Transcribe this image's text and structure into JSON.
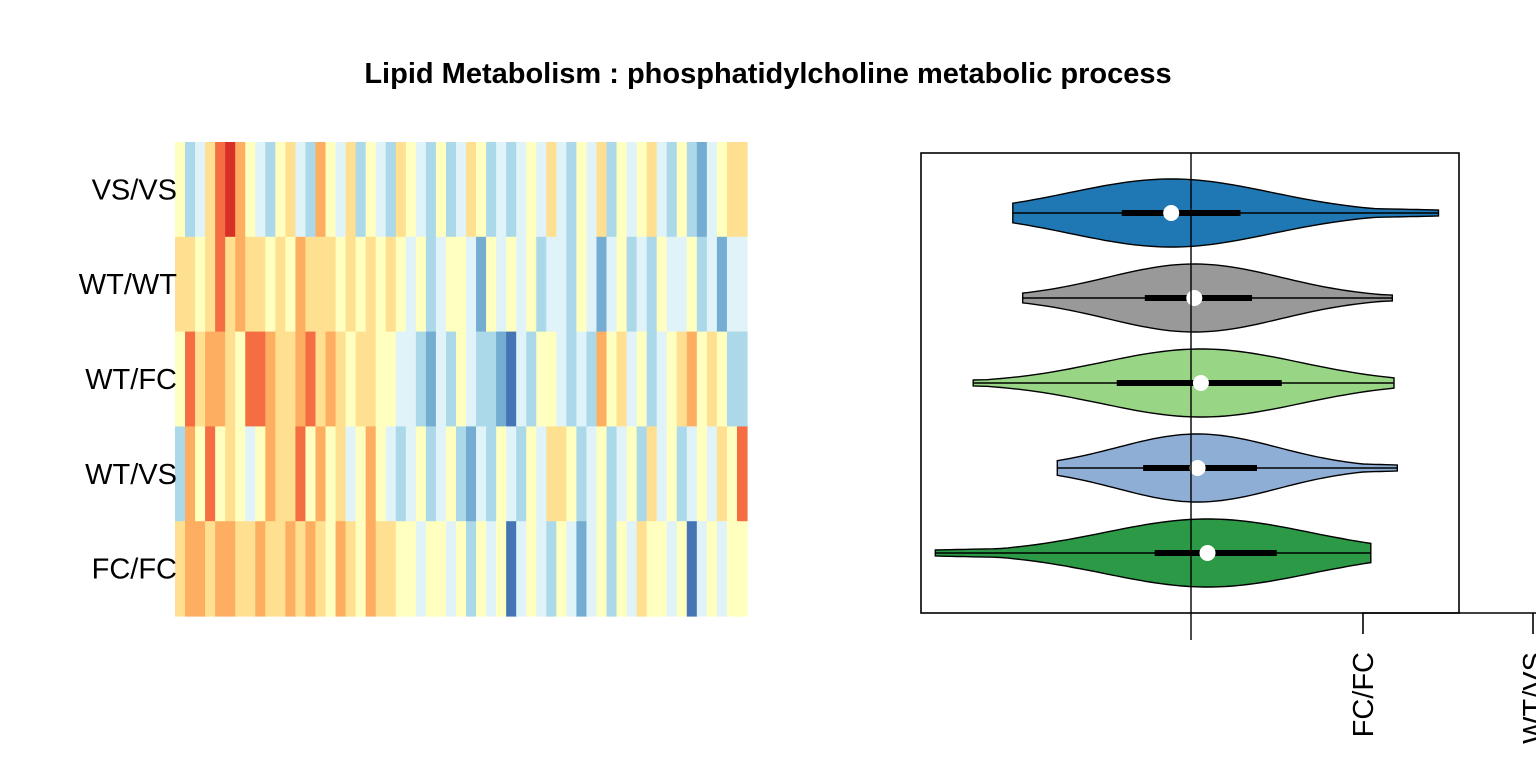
{
  "chart_data": [
    {
      "type": "heatmap",
      "title": "Lipid Metabolism : phosphatidylcholine metabolic process",
      "rows": [
        "VS/VS",
        "WT/WT",
        "WT/FC",
        "WT/VS",
        "FC/FC"
      ],
      "n_columns": 57,
      "palette": [
        "#d73027",
        "#f46d43",
        "#fdae61",
        "#fee090",
        "#ffffbf",
        "#e0f3f8",
        "#abd9e9",
        "#74add1",
        "#4575b4"
      ],
      "values": [
        [
          4,
          6,
          5,
          3,
          1,
          0,
          2,
          4,
          5,
          6,
          4,
          3,
          5,
          6,
          2,
          4,
          5,
          3,
          6,
          4,
          5,
          6,
          3,
          4,
          5,
          6,
          4,
          6,
          5,
          3,
          4,
          6,
          5,
          6,
          5,
          4,
          5,
          3,
          5,
          6,
          4,
          5,
          3,
          6,
          4,
          5,
          4,
          3,
          5,
          6,
          4,
          6,
          7,
          5,
          4,
          3,
          3
        ],
        [
          3,
          3,
          4,
          3,
          1,
          3,
          2,
          3,
          3,
          4,
          3,
          4,
          2,
          3,
          3,
          3,
          4,
          3,
          4,
          3,
          4,
          3,
          4,
          5,
          4,
          6,
          5,
          4,
          4,
          5,
          7,
          4,
          5,
          4,
          5,
          4,
          6,
          5,
          5,
          6,
          4,
          5,
          7,
          5,
          4,
          6,
          5,
          6,
          4,
          5,
          5,
          4,
          6,
          5,
          7,
          5,
          5
        ],
        [
          4,
          1,
          3,
          2,
          2,
          3,
          4,
          1,
          1,
          2,
          3,
          3,
          2,
          1,
          3,
          2,
          3,
          4,
          3,
          3,
          4,
          4,
          5,
          5,
          6,
          7,
          5,
          6,
          4,
          5,
          6,
          6,
          7,
          8,
          5,
          6,
          4,
          4,
          5,
          6,
          5,
          6,
          2,
          4,
          3,
          5,
          4,
          6,
          5,
          4,
          3,
          2,
          4,
          3,
          4,
          6,
          6
        ],
        [
          6,
          2,
          4,
          1,
          4,
          3,
          4,
          5,
          4,
          2,
          3,
          3,
          1,
          4,
          2,
          4,
          3,
          5,
          4,
          2,
          4,
          5,
          6,
          5,
          4,
          6,
          5,
          4,
          6,
          7,
          5,
          6,
          4,
          5,
          6,
          4,
          5,
          3,
          3,
          4,
          6,
          5,
          4,
          6,
          5,
          4,
          6,
          3,
          5,
          4,
          6,
          5,
          4,
          5,
          3,
          4,
          1
        ],
        [
          3,
          2,
          2,
          3,
          2,
          2,
          3,
          3,
          2,
          3,
          3,
          2,
          3,
          2,
          3,
          4,
          2,
          3,
          4,
          2,
          3,
          3,
          4,
          4,
          5,
          4,
          4,
          5,
          4,
          6,
          4,
          5,
          4,
          8,
          5,
          4,
          5,
          6,
          4,
          5,
          7,
          5,
          4,
          6,
          4,
          5,
          3,
          4,
          4,
          5,
          4,
          8,
          5,
          4,
          5,
          4,
          4
        ]
      ]
    },
    {
      "type": "violin",
      "categories": [
        "VS/VS",
        "WT/WT",
        "WT/FC",
        "WT/VS",
        "FC/FC"
      ],
      "tick_labels": [
        "FC/FC",
        "WT/VS"
      ],
      "series": [
        {
          "category": "VS/VS",
          "color": "#1f78b4",
          "min": -1.08,
          "q1": -0.42,
          "median": -0.12,
          "q3": 0.3,
          "max": 1.5
        },
        {
          "category": "WT/WT",
          "color": "#999999",
          "min": -1.02,
          "q1": -0.28,
          "median": 0.02,
          "q3": 0.37,
          "max": 1.22
        },
        {
          "category": "WT/FC",
          "color": "#98d685",
          "min": -1.32,
          "q1": -0.45,
          "median": 0.06,
          "q3": 0.55,
          "max": 1.23
        },
        {
          "category": "WT/VS",
          "color": "#8faed6",
          "min": -0.81,
          "q1": -0.29,
          "median": 0.04,
          "q3": 0.4,
          "max": 1.25
        },
        {
          "category": "FC/FC",
          "color": "#2b9945",
          "min": -1.55,
          "q1": -0.22,
          "median": 0.1,
          "q3": 0.52,
          "max": 1.09
        }
      ]
    }
  ]
}
